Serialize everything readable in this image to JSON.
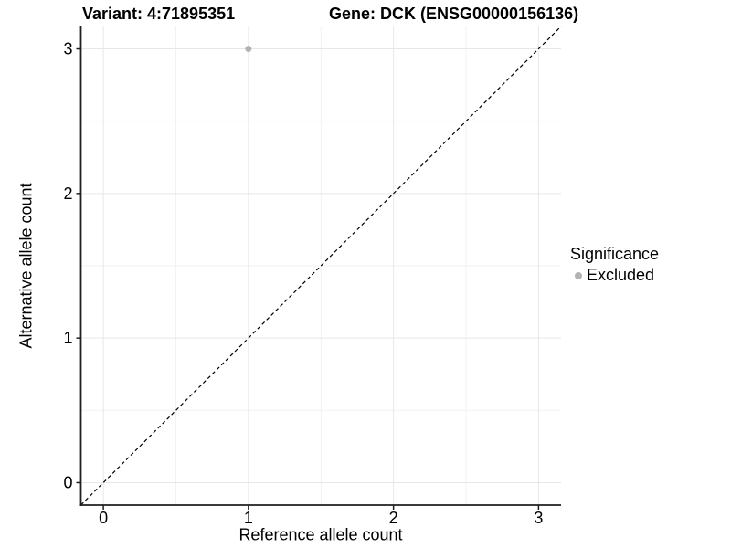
{
  "titles": {
    "variant": "Variant: 4:71895351",
    "gene": "Gene: DCK (ENSG00000156136)"
  },
  "colors": {
    "axis": "#1f1f1f",
    "grid_major": "#e7e7e7",
    "grid_minor": "#f2f2f2",
    "point": "#b3b3b3",
    "identity_line": "#000000",
    "background": "#ffffff"
  },
  "chart_data": {
    "type": "scatter",
    "title_left": "Variant: 4:71895351",
    "title_right": "Gene: DCK (ENSG00000156136)",
    "xlabel": "Reference allele count",
    "ylabel": "Alternative allele count",
    "xlim": [
      -0.155,
      3.155
    ],
    "ylim": [
      -0.155,
      3.155
    ],
    "x_ticks": [
      0,
      1,
      2,
      3
    ],
    "y_ticks": [
      0,
      1,
      2,
      3
    ],
    "grid": "major+minor",
    "minor_grid_step": 0.5,
    "identity_line": {
      "style": "dashed",
      "slope": 1,
      "intercept": 0,
      "color": "#000000"
    },
    "series": [
      {
        "name": "Excluded",
        "color": "#b3b3b3",
        "points": [
          {
            "x": 1,
            "y": 3
          }
        ]
      }
    ],
    "legend": {
      "title": "Significance",
      "position": "right",
      "entries": [
        {
          "label": "Excluded",
          "color": "#b3b3b3"
        }
      ]
    }
  }
}
